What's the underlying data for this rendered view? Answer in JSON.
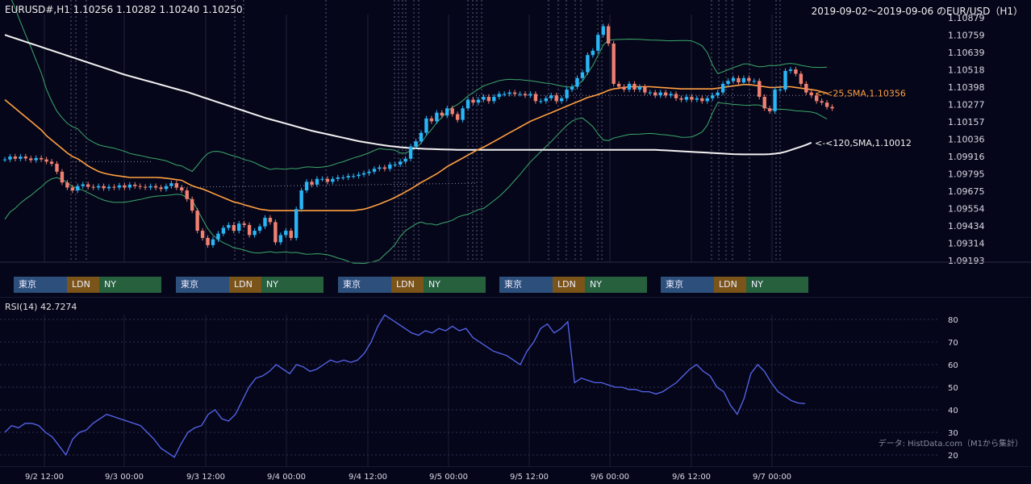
{
  "header": {
    "symbol_line": "EURUSD#,H1 1.10256 1.10282 1.10240 1.10250",
    "range_title": "2019-09-02～2019-09-06 のEUR/USD（H1）"
  },
  "rsi_label": "RSI(14) 42.7274",
  "source_note": "データ: HistData.com（M1から集計）",
  "hour_ticks": [
    "12",
    "0",
    "12",
    "0",
    "12",
    "0",
    "12",
    "0",
    "12",
    "0"
  ],
  "date_ticks": [
    "9/2 12:00",
    "9/3 00:00",
    "9/3 12:00",
    "9/4 00:00",
    "9/4 12:00",
    "9/5 00:00",
    "9/5 12:00",
    "9/6 00:00",
    "9/6 12:00",
    "9/7 00:00"
  ],
  "sessions": [
    {
      "tokyo": "東京",
      "ldn": "LDN",
      "ny": "NY"
    },
    {
      "tokyo": "東京",
      "ldn": "LDN",
      "ny": "NY"
    },
    {
      "tokyo": "東京",
      "ldn": "LDN",
      "ny": "NY"
    },
    {
      "tokyo": "東京",
      "ldn": "LDN",
      "ny": "NY"
    },
    {
      "tokyo": "東京",
      "ldn": "LDN",
      "ny": "NY"
    }
  ],
  "colors": {
    "background": "#06061a",
    "bull": "#29b6f6",
    "bear": "#f08070",
    "sma25": "#ffa040",
    "sma120": "#f2f2f2",
    "bands": "#3aa86a",
    "rsi": "#5566ee"
  },
  "chart_data": [
    {
      "type": "candlestick",
      "title": "2019-09-02～2019-09-06 のEUR/USD（H1）",
      "yticks": [
        "1.10879",
        "1.10759",
        "1.10639",
        "1.10518",
        "1.10398",
        "1.10277",
        "1.10157",
        "1.10036",
        "1.09916",
        "1.09795",
        "1.09675",
        "1.09554",
        "1.09434",
        "1.09314",
        "1.09193"
      ],
      "ylim": [
        1.09193,
        1.10879
      ],
      "sma25_label": "<-<25,SMA,1.10356",
      "sma120_label": "<-<120,SMA,1.10012",
      "series": {
        "close": [
          1.09895,
          1.09915,
          1.099,
          1.09915,
          1.09902,
          1.0989,
          1.09905,
          1.09895,
          1.0988,
          1.09865,
          1.0981,
          1.09735,
          1.097,
          1.0968,
          1.0971,
          1.09722,
          1.09705,
          1.097,
          1.0971,
          1.09695,
          1.09705,
          1.097,
          1.09715,
          1.097,
          1.0972,
          1.0971,
          1.09705,
          1.097,
          1.0971,
          1.097,
          1.0969,
          1.0971,
          1.0973,
          1.097,
          1.0968,
          1.0962,
          1.0954,
          1.094,
          1.0935,
          1.093,
          1.0934,
          1.0938,
          1.0942,
          1.0944,
          1.094,
          1.0945,
          1.0944,
          1.0937,
          1.094,
          1.0943,
          1.0949,
          1.0946,
          1.0932,
          1.0937,
          1.094,
          1.0935,
          1.0955,
          1.0968,
          1.0974,
          1.0972,
          1.0976,
          1.0976,
          1.0974,
          1.0976,
          1.0977,
          1.0977,
          1.0978,
          1.0978,
          1.0979,
          1.098,
          1.0981,
          1.0983,
          1.0984,
          1.0983,
          1.0986,
          1.0986,
          1.0988,
          1.099,
          1.09985,
          1.1002,
          1.1008,
          1.1018,
          1.1016,
          1.1022,
          1.102,
          1.1025,
          1.1021,
          1.1017,
          1.1025,
          1.1031,
          1.1029,
          1.1031,
          1.1033,
          1.103,
          1.1033,
          1.1035,
          1.1035,
          1.1036,
          1.1035,
          1.1035,
          1.1034,
          1.1035,
          1.103,
          1.103,
          1.1032,
          1.1034,
          1.103,
          1.1032,
          1.1038,
          1.104,
          1.1046,
          1.105,
          1.1062,
          1.1065,
          1.1076,
          1.1082,
          1.107,
          1.1042,
          1.104,
          1.1038,
          1.1042,
          1.1038,
          1.104,
          1.1036,
          1.1036,
          1.1034,
          1.1036,
          1.1034,
          1.1035,
          1.1032,
          1.1031,
          1.1033,
          1.1031,
          1.1032,
          1.103,
          1.1032,
          1.1034,
          1.1036,
          1.1042,
          1.1044,
          1.1046,
          1.1043,
          1.1046,
          1.1044,
          1.1044,
          1.1033,
          1.1025,
          1.1023,
          1.1038,
          1.1038,
          1.1051,
          1.1052,
          1.1049,
          1.1042,
          1.1036,
          1.1034,
          1.103,
          1.1029,
          1.1026,
          1.1025
        ],
        "sma25": [
          1.1031,
          1.1028,
          1.1025,
          1.1022,
          1.1019,
          1.1016,
          1.1013,
          1.101,
          1.1006,
          1.1003,
          1.1,
          1.0997,
          1.0994,
          1.09915,
          1.099,
          1.09875,
          1.0985,
          1.0983,
          1.09812,
          1.098,
          1.09792,
          1.09785,
          1.0978,
          1.09775,
          1.0977,
          1.0977,
          1.0977,
          1.0977,
          1.0977,
          1.0977,
          1.09768,
          1.09765,
          1.0976,
          1.09755,
          1.0975,
          1.0973,
          1.09712,
          1.097,
          1.0969,
          1.09675,
          1.0966,
          1.09645,
          1.0963,
          1.09615,
          1.096,
          1.09592,
          1.0958,
          1.0957,
          1.0956,
          1.0955,
          1.09545,
          1.0954,
          1.0954,
          1.0954,
          1.0954,
          1.0954,
          1.0954,
          1.0954,
          1.0954,
          1.0954,
          1.0954,
          1.0954,
          1.0954,
          1.0954,
          1.0954,
          1.0954,
          1.0954,
          1.0954,
          1.09545,
          1.0955,
          1.0956,
          1.09572,
          1.09585,
          1.096,
          1.09615,
          1.09632,
          1.0965,
          1.0967,
          1.0969,
          1.09712,
          1.09735,
          1.09755,
          1.09775,
          1.09795,
          1.0982,
          1.09845,
          1.09865,
          1.09885,
          1.09905,
          1.09925,
          1.09945,
          1.09965,
          1.0998,
          1.1,
          1.1002,
          1.1004,
          1.1006,
          1.1008,
          1.101,
          1.1012,
          1.1014,
          1.1016,
          1.10175,
          1.1019,
          1.10205,
          1.1022,
          1.10235,
          1.1025,
          1.10265,
          1.1028,
          1.10295,
          1.1031,
          1.10325,
          1.10335,
          1.10345,
          1.1036,
          1.10375,
          1.10385,
          1.1039,
          1.10395,
          1.104,
          1.104,
          1.104,
          1.104,
          1.104,
          1.10398,
          1.10395,
          1.10393,
          1.1039,
          1.10388,
          1.10385,
          1.10385,
          1.10385,
          1.10385,
          1.10385,
          1.10385,
          1.10385,
          1.1039,
          1.10395,
          1.104,
          1.10405,
          1.1041,
          1.10415,
          1.10415,
          1.1041,
          1.10405,
          1.104,
          1.10395,
          1.10395,
          1.10398,
          1.104,
          1.104,
          1.10395,
          1.1039,
          1.10385,
          1.1038,
          1.10375,
          1.10365,
          1.10356
        ],
        "sma120": [
          1.1076,
          1.10748,
          1.10736,
          1.10724,
          1.10712,
          1.107,
          1.10688,
          1.10676,
          1.10664,
          1.10652,
          1.1064,
          1.10628,
          1.10616,
          1.10604,
          1.10592,
          1.1058,
          1.10568,
          1.10556,
          1.10544,
          1.10532,
          1.1052,
          1.10508,
          1.10496,
          1.10484,
          1.10474,
          1.10464,
          1.10454,
          1.10444,
          1.10434,
          1.10424,
          1.10414,
          1.10404,
          1.10394,
          1.10384,
          1.10374,
          1.10364,
          1.10352,
          1.1034,
          1.10328,
          1.10316,
          1.10304,
          1.10292,
          1.1028,
          1.10268,
          1.10256,
          1.10244,
          1.10232,
          1.1022,
          1.10208,
          1.10196,
          1.10184,
          1.10174,
          1.10164,
          1.10154,
          1.10144,
          1.10134,
          1.10124,
          1.10114,
          1.10104,
          1.10094,
          1.10086,
          1.10078,
          1.1007,
          1.10062,
          1.10054,
          1.10046,
          1.10038,
          1.1003,
          1.10022,
          1.10016,
          1.1001,
          1.10004,
          1.09998,
          1.09993,
          1.09988,
          1.09984,
          1.0998,
          1.09977,
          1.09974,
          1.09972,
          1.0997,
          1.09968,
          1.09967,
          1.09966,
          1.09965,
          1.09964,
          1.09963,
          1.09962,
          1.09962,
          1.09962,
          1.09962,
          1.09962,
          1.09962,
          1.09962,
          1.09962,
          1.09962,
          1.09962,
          1.09962,
          1.09962,
          1.09962,
          1.09962,
          1.09962,
          1.09962,
          1.09962,
          1.09962,
          1.09962,
          1.09962,
          1.09962,
          1.09962,
          1.09962,
          1.09962,
          1.09962,
          1.09962,
          1.09962,
          1.09962,
          1.09962,
          1.09962,
          1.09962,
          1.09962,
          1.09962,
          1.09962,
          1.09962,
          1.09962,
          1.09962,
          1.09962,
          1.09962,
          1.0996,
          1.09958,
          1.09956,
          1.09954,
          1.09952,
          1.0995,
          1.09948,
          1.09946,
          1.09944,
          1.09942,
          1.0994,
          1.09938,
          1.09936,
          1.09934,
          1.09932,
          1.09931,
          1.0993,
          1.0993,
          1.0993,
          1.0993,
          1.0993,
          1.09932,
          1.09935,
          1.0994,
          1.09948,
          1.0996,
          1.09972,
          1.09984,
          1.09996,
          1.10012
        ]
      }
    },
    {
      "type": "line",
      "title": "RSI(14) 42.7274",
      "yticks": [
        "80",
        "70",
        "60",
        "50",
        "40",
        "30",
        "20"
      ],
      "ylim": [
        15,
        90
      ],
      "values": [
        30,
        33,
        32,
        34,
        34,
        33,
        30,
        28,
        24,
        20,
        27,
        30,
        31,
        34,
        36,
        38,
        37,
        36,
        35,
        34,
        33,
        30,
        27,
        23,
        21,
        19,
        25,
        30,
        32,
        33,
        38,
        40,
        36,
        35,
        38,
        44,
        50,
        54,
        55,
        57,
        60,
        58,
        56,
        60,
        59,
        57,
        58,
        60,
        62,
        61,
        62,
        61,
        62,
        65,
        70,
        77,
        82,
        80,
        78,
        76,
        74,
        73,
        75,
        74,
        76,
        75,
        77,
        75,
        76,
        72,
        70,
        68,
        66,
        65,
        64,
        62,
        60,
        66,
        70,
        76,
        78,
        74,
        76,
        79,
        52,
        54,
        53,
        52,
        52,
        51,
        50,
        50,
        49,
        49,
        48,
        48,
        47,
        48,
        50,
        52,
        55,
        58,
        60,
        57,
        55,
        50,
        48,
        42,
        38,
        45,
        56,
        60,
        57,
        52,
        48,
        46,
        44,
        43,
        42.7
      ]
    }
  ]
}
